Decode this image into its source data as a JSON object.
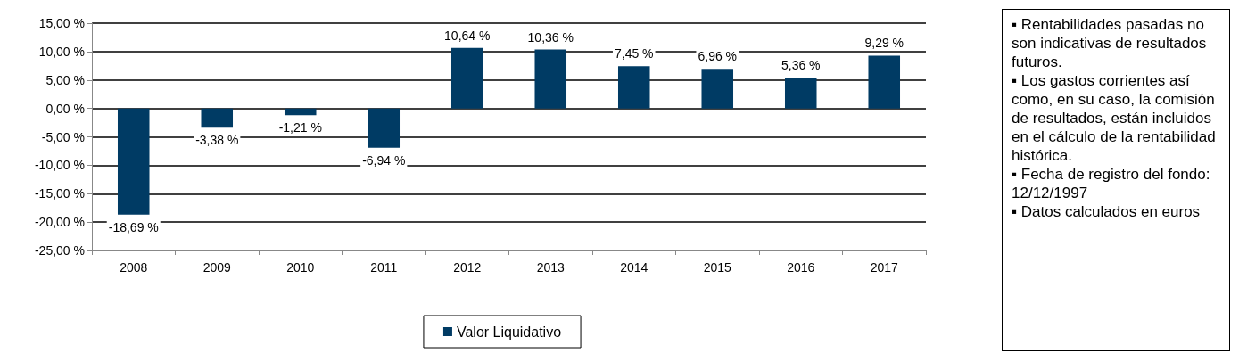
{
  "chart_data": {
    "type": "bar",
    "categories": [
      "2008",
      "2009",
      "2010",
      "2011",
      "2012",
      "2013",
      "2014",
      "2015",
      "2016",
      "2017"
    ],
    "series": [
      {
        "name": "Valor Liquidativo",
        "color": "#003b64",
        "values": [
          -18.69,
          -3.38,
          -1.21,
          -6.94,
          10.64,
          10.36,
          7.45,
          6.96,
          5.36,
          9.29
        ],
        "value_labels": [
          "-18,69 %",
          "-3,38 %",
          "-1,21 %",
          "-6,94 %",
          "10,64 %",
          "10,36 %",
          "7,45 %",
          "6,96 %",
          "5,36 %",
          "9,29 %"
        ]
      }
    ],
    "ylim": [
      -25,
      15
    ],
    "yticks": [
      {
        "value": -25,
        "label": "-25,00 %"
      },
      {
        "value": -20,
        "label": "-20,00 %"
      },
      {
        "value": -15,
        "label": "-15,00 %"
      },
      {
        "value": -10,
        "label": "-10,00 %"
      },
      {
        "value": -5,
        "label": "-5,00 %"
      },
      {
        "value": 0,
        "label": "0,00 %"
      },
      {
        "value": 5,
        "label": "5,00 %"
      },
      {
        "value": 10,
        "label": "10,00 %"
      },
      {
        "value": 15,
        "label": "15,00 %"
      }
    ],
    "grid": "y",
    "legend": "bottom",
    "annotations": [
      "▪ Rentabilidades pasadas no son indicativas de resultados futuros.",
      "▪ Los gastos corrientes así como, en su caso, la comisión de resultados, están incluidos en el cálculo de la rentabilidad histórica.",
      "▪ Fecha de registro del fondo: 12/12/1997",
      "▪ Datos calculados en euros"
    ]
  }
}
